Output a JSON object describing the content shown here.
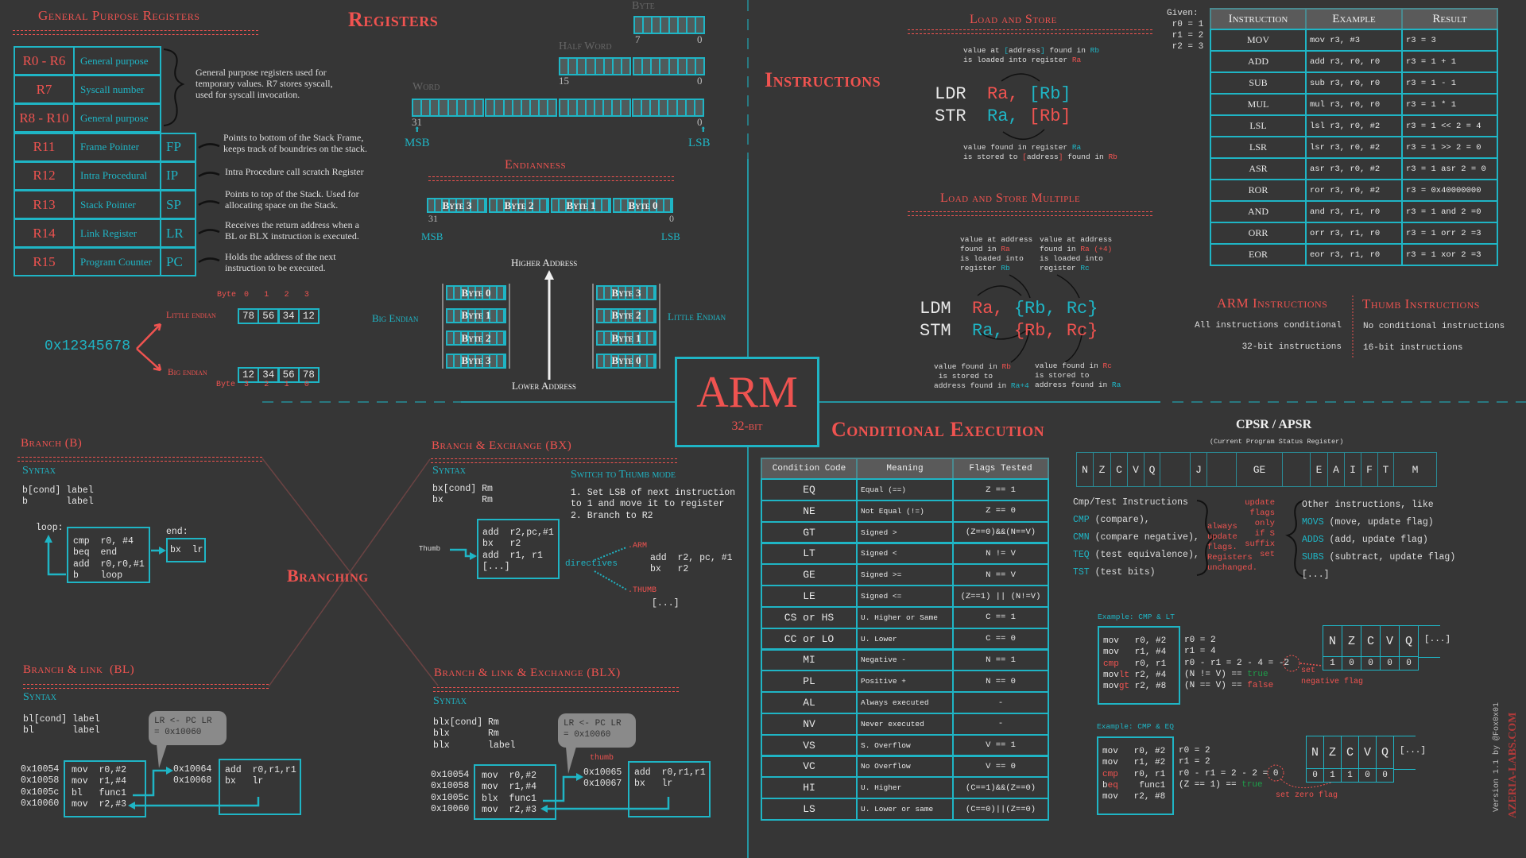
{
  "colors": {
    "background": "#363636",
    "red": "#ef5350",
    "cyan": "#1fb5c5",
    "green": "#1e9e4a"
  },
  "registers": {
    "title": "Registers",
    "gp_title": "General Purpose Registers",
    "rows": [
      {
        "reg": "R0 - R6",
        "name": "General purpose",
        "alias": ""
      },
      {
        "reg": "R7",
        "name": "Syscall number",
        "alias": ""
      },
      {
        "reg": "R8 - R10",
        "name": "General purpose",
        "alias": ""
      },
      {
        "reg": "R11",
        "name": "Frame Pointer",
        "alias": "FP"
      },
      {
        "reg": "R12",
        "name": "Intra Procedural",
        "alias": "IP"
      },
      {
        "reg": "R13",
        "name": "Stack Pointer",
        "alias": "SP"
      },
      {
        "reg": "R14",
        "name": "Link Register",
        "alias": "LR"
      },
      {
        "reg": "R15",
        "name": "Program Counter",
        "alias": "PC"
      }
    ],
    "gp_note": "General purpose registers used for\ntemporary values. R7 stores syscall,\nused for syscall invocation.",
    "notes": [
      "Points to bottom of the Stack Frame,\nkeeps track of boundries on the stack.",
      "Intra Procedure call scratch Register",
      "Points to top of the Stack. Used for\nallocating space on the Stack.",
      "Receives the return address when a\nBL or BLX instruction is executed.",
      "Holds the address of the next\ninstruction to be executed."
    ],
    "byte_label": "Byte",
    "half_word_label": "Half Word",
    "word_label": "Word",
    "byte_hi": "7",
    "byte_lo": "0",
    "half_hi": "15",
    "half_lo": "0",
    "word_hi": "31",
    "word_lo": "0",
    "msb": "MSB",
    "lsb": "LSB"
  },
  "endianness": {
    "title": "Endianness",
    "bytes": [
      "Byte 3",
      "Byte 2",
      "Byte 1",
      "Byte 0"
    ],
    "hi": "31",
    "lo": "0",
    "msb": "MSB",
    "lsb": "LSB",
    "higher_address": "Higher Address",
    "lower_address": "Lower Address",
    "big_label": "Big Endian",
    "little_label": "Little Endian",
    "big_stack": [
      "Byte 0",
      "Byte 1",
      "Byte 2",
      "Byte 3"
    ],
    "little_stack": [
      "Byte 3",
      "Byte 2",
      "Byte 1",
      "Byte 0"
    ],
    "value": "0x12345678",
    "little_example_label": "Little endian",
    "big_example_label": "Big endian",
    "byte_word": "Byte",
    "little_indices": [
      "0",
      "1",
      "2",
      "3"
    ],
    "little_values": [
      "78",
      "56",
      "34",
      "12"
    ],
    "big_indices": [
      "3",
      "2",
      "1",
      "0"
    ],
    "big_values": [
      "12",
      "34",
      "56",
      "78"
    ]
  },
  "logo": {
    "name": "ARM",
    "sub": "32-bit"
  },
  "instructions": {
    "title": "Instructions",
    "load_store": {
      "title": "Load and Store",
      "top_note": [
        "value at ",
        "[",
        "address",
        "]",
        " found in ",
        "Rb",
        "is loaded into register ",
        "Ra"
      ],
      "ldr": "LDR",
      "str": "STR",
      "ra": "Ra,",
      "rb": "[Rb]",
      "bottom_note": [
        "value found in register ",
        "Ra",
        "is stored to ",
        "[",
        "address",
        "]",
        " found in ",
        "Rb"
      ]
    },
    "multiple": {
      "title": "Load and Store Multiple",
      "ldm": "LDM",
      "stm": "STM",
      "ra": "Ra,",
      "rbrc": "{Rb, Rc}",
      "tl": [
        "value at address",
        "found in ",
        "Ra",
        "is loaded into",
        "register ",
        "Rb"
      ],
      "tr": [
        "value at address",
        "found in ",
        "Ra (+4)",
        "is loaded into",
        "register ",
        "Rc"
      ],
      "bl": [
        "value found in ",
        "Rb",
        " is stored to",
        "address found in ",
        "Ra+4"
      ],
      "br": [
        "value found in ",
        "Rc",
        "is stored to",
        "address found in ",
        "Ra"
      ]
    },
    "given": "Given:\n r0 = 1\n r1 = 2\n r2 = 3",
    "table": {
      "headers": [
        "Instruction",
        "Example",
        "Result"
      ],
      "rows": [
        [
          "MOV",
          "mov r3, #3",
          "r3 = 3"
        ],
        [
          "ADD",
          "add r3, r0, r0",
          "r3 = 1 + 1"
        ],
        [
          "SUB",
          "sub r3, r0, r0",
          "r3 = 1 - 1"
        ],
        [
          "MUL",
          "mul r3, r0, r0",
          "r3 = 1 * 1"
        ],
        [
          "LSL",
          "lsl r3, r0, #2",
          "r3 = 1 << 2 = 4"
        ],
        [
          "LSR",
          "lsr r3, r0, #2",
          "r3 = 1 >> 2 = 0"
        ],
        [
          "ASR",
          "asr r3, r0, #2",
          "r3 = 1 asr 2 = 0"
        ],
        [
          "ROR",
          "ror r3, r0, #2",
          "r3 = 0x40000000"
        ],
        [
          "AND",
          "and r3, r1, r0",
          "r3 = 1 and 2 =0"
        ],
        [
          "ORR",
          "orr r3, r1, r0",
          "r3 = 1 orr 2 =3"
        ],
        [
          "EOR",
          "eor r3, r1, r0",
          "r3 = 1 xor 2 =3"
        ]
      ]
    },
    "arm_title": "ARM Instructions",
    "arm_lines": [
      "All instructions conditional",
      "32-bit instructions"
    ],
    "thumb_title": "Thumb Instructions",
    "thumb_lines": [
      "No conditional instructions",
      "16-bit instructions"
    ]
  },
  "conditional": {
    "title": "Conditional Execution",
    "headers": [
      "Condition Code",
      "Meaning",
      "Flags Tested"
    ],
    "rows": [
      [
        "EQ",
        "Equal (==)",
        "Z == 1"
      ],
      [
        "NE",
        "Not Equal (!=)",
        "Z == 0"
      ],
      [
        "GT",
        "Signed >",
        "(Z==0)&&(N==V)"
      ],
      [
        "LT",
        "Signed <",
        "N != V"
      ],
      [
        "GE",
        "Signed >=",
        "N == V"
      ],
      [
        "LE",
        "Signed <=",
        "(Z==1) || (N!=V)"
      ],
      [
        "CS or HS",
        "U. Higher or Same",
        "C == 1"
      ],
      [
        "CC or LO",
        "U. Lower",
        "C == 0"
      ],
      [
        "MI",
        "Negative -",
        "N == 1"
      ],
      [
        "PL",
        "Positive +",
        "N == 0"
      ],
      [
        "AL",
        "Always executed",
        "-"
      ],
      [
        "NV",
        "Never executed",
        "-"
      ],
      [
        "VS",
        "S. Overflow",
        "V == 1"
      ],
      [
        "VC",
        "No Overflow",
        "V == 0"
      ],
      [
        "HI",
        "U. Higher",
        "(C==1)&&(Z==0)"
      ],
      [
        "LS",
        "U. Lower or same",
        "(C==0)||(Z==0)"
      ]
    ],
    "cpsr_title": "CPSR / APSR",
    "cpsr_sub": "(Current Program Status Register)",
    "cpsr_fields": [
      "N",
      "Z",
      "C",
      "V",
      "Q",
      "",
      "J",
      "",
      "GE",
      "",
      "E",
      "A",
      "I",
      "F",
      "T",
      "M"
    ],
    "cmp_title": "Cmp/Test Instructions",
    "cmp_items": [
      [
        "CMP",
        " (compare),"
      ],
      [
        "CMN",
        " (compare negative),"
      ],
      [
        "TEQ",
        " (test equivalence),"
      ],
      [
        "TST",
        " (test bits)"
      ]
    ],
    "always_note": "always\nupdate\nflags.\nRegisters\nunchanged.",
    "s_note": "update\nflags\nonly\nif S\nsuffix\nset",
    "other_title": "Other instructions, like",
    "other_items": [
      [
        "MOVS",
        " (move, update flag)"
      ],
      [
        "ADDS",
        " (add, update flag)"
      ],
      [
        "SUBS",
        " (subtract, update flag)"
      ]
    ],
    "other_more": "[...]",
    "ex1": {
      "title": "Example: CMP & LT",
      "code": [
        [
          "mov",
          "   r0, #2"
        ],
        [
          "mov",
          "   r1, #4"
        ],
        [
          "cmp",
          "   r0, r1"
        ],
        [
          "mov",
          "lt",
          " r2, #4"
        ],
        [
          "mov",
          "gt",
          " r2, #8"
        ]
      ],
      "calc": [
        "r0 = 2",
        "r1 = 4",
        "r0 - r1 = 2 - 4 = -2"
      ],
      "check1": "(N != V) == ",
      "check1_val": "true",
      "check2": "(N == V) == ",
      "check2_val": "false",
      "flags": [
        "N",
        "Z",
        "C",
        "V",
        "Q"
      ],
      "values": [
        "1",
        "0",
        "0",
        "0",
        "0"
      ],
      "more": "[...]",
      "note": "set\nnegative flag"
    },
    "ex2": {
      "title": "Example: CMP & EQ",
      "code": [
        [
          "mov",
          "   r0, #2"
        ],
        [
          "mov",
          "   r1, #2"
        ],
        [
          "cmp",
          "   r0, r1"
        ],
        [
          "b",
          "eq",
          "    func1"
        ],
        [
          "mov",
          "   r2, #8"
        ]
      ],
      "calc": [
        "r0 = 2",
        "r1 = 2",
        "r0 - r1 = 2 - 2 = 0"
      ],
      "check1": "(Z == 1) == ",
      "check1_val": "true",
      "flags": [
        "N",
        "Z",
        "C",
        "V",
        "Q"
      ],
      "values": [
        "0",
        "1",
        "1",
        "0",
        "0"
      ],
      "more": "[...]",
      "note": "set zero flag"
    }
  },
  "branching": {
    "title": "Branching",
    "syntax_label": "Syntax",
    "b": {
      "title": "Branch (B)",
      "syntax": "b[cond] label\nb       label",
      "loop_label": "loop:",
      "loop_code": "cmp  r0, #4\nbeq  end\nadd  r0,r0,#1\nb    loop",
      "end_label": "end:",
      "end_code": "bx  lr"
    },
    "bx": {
      "title": "Branch & Exchange (BX)",
      "syntax": "bx[cond] Rm\nbx       Rm",
      "code": "add  r2,pc,#1\nbx   r2\nadd  r1, r1\n[...]",
      "thumb_label": "Thumb",
      "switch_title": "Switch to Thumb mode",
      "switch_text": "1. Set LSB of next instruction\nto 1 and move it to register\n2. Branch to R2",
      "directives": "directives",
      "arm_dir": ".ARM",
      "arm_code": "add  r2, pc, #1\nbx   r2",
      "thumb_dir": ".THUMB",
      "thumb_code": "[...]"
    },
    "bl": {
      "title": "Branch & link  (BL)",
      "syntax": "bl[cond] label\nbl       label",
      "bubble": "LR <- PC\nLR = 0x10060",
      "addrs": "0x10054\n0x10058\n0x1005c\n0x10060",
      "code": "mov  r0,#2\nmov  r1,#4\nbl   func1\nmov  r2,#3",
      "func_addrs": "0x10064\n0x10068",
      "func_code": "add  r0,r1,r1\nbx   lr"
    },
    "blx": {
      "title": "Branch & link & Exchange (BLX)",
      "syntax": "blx[cond] Rm\nblx       Rm\nblx       label",
      "bubble": "LR <- PC\nLR = 0x10060",
      "thumb_label": "thumb",
      "addrs": "0x10054\n0x10058\n0x1005c\n0x10060",
      "code": "mov  r0,#2\nmov  r1,#4\nblx  func1\nmov  r2,#3",
      "func_addrs": "0x10065\n0x10067",
      "func_code": "add  r0,r1,r1\nbx   lr"
    }
  },
  "footer": {
    "version": "Version 1.1 by @Fox0x01",
    "logo_text": "AZERIA-LABS.COM"
  }
}
